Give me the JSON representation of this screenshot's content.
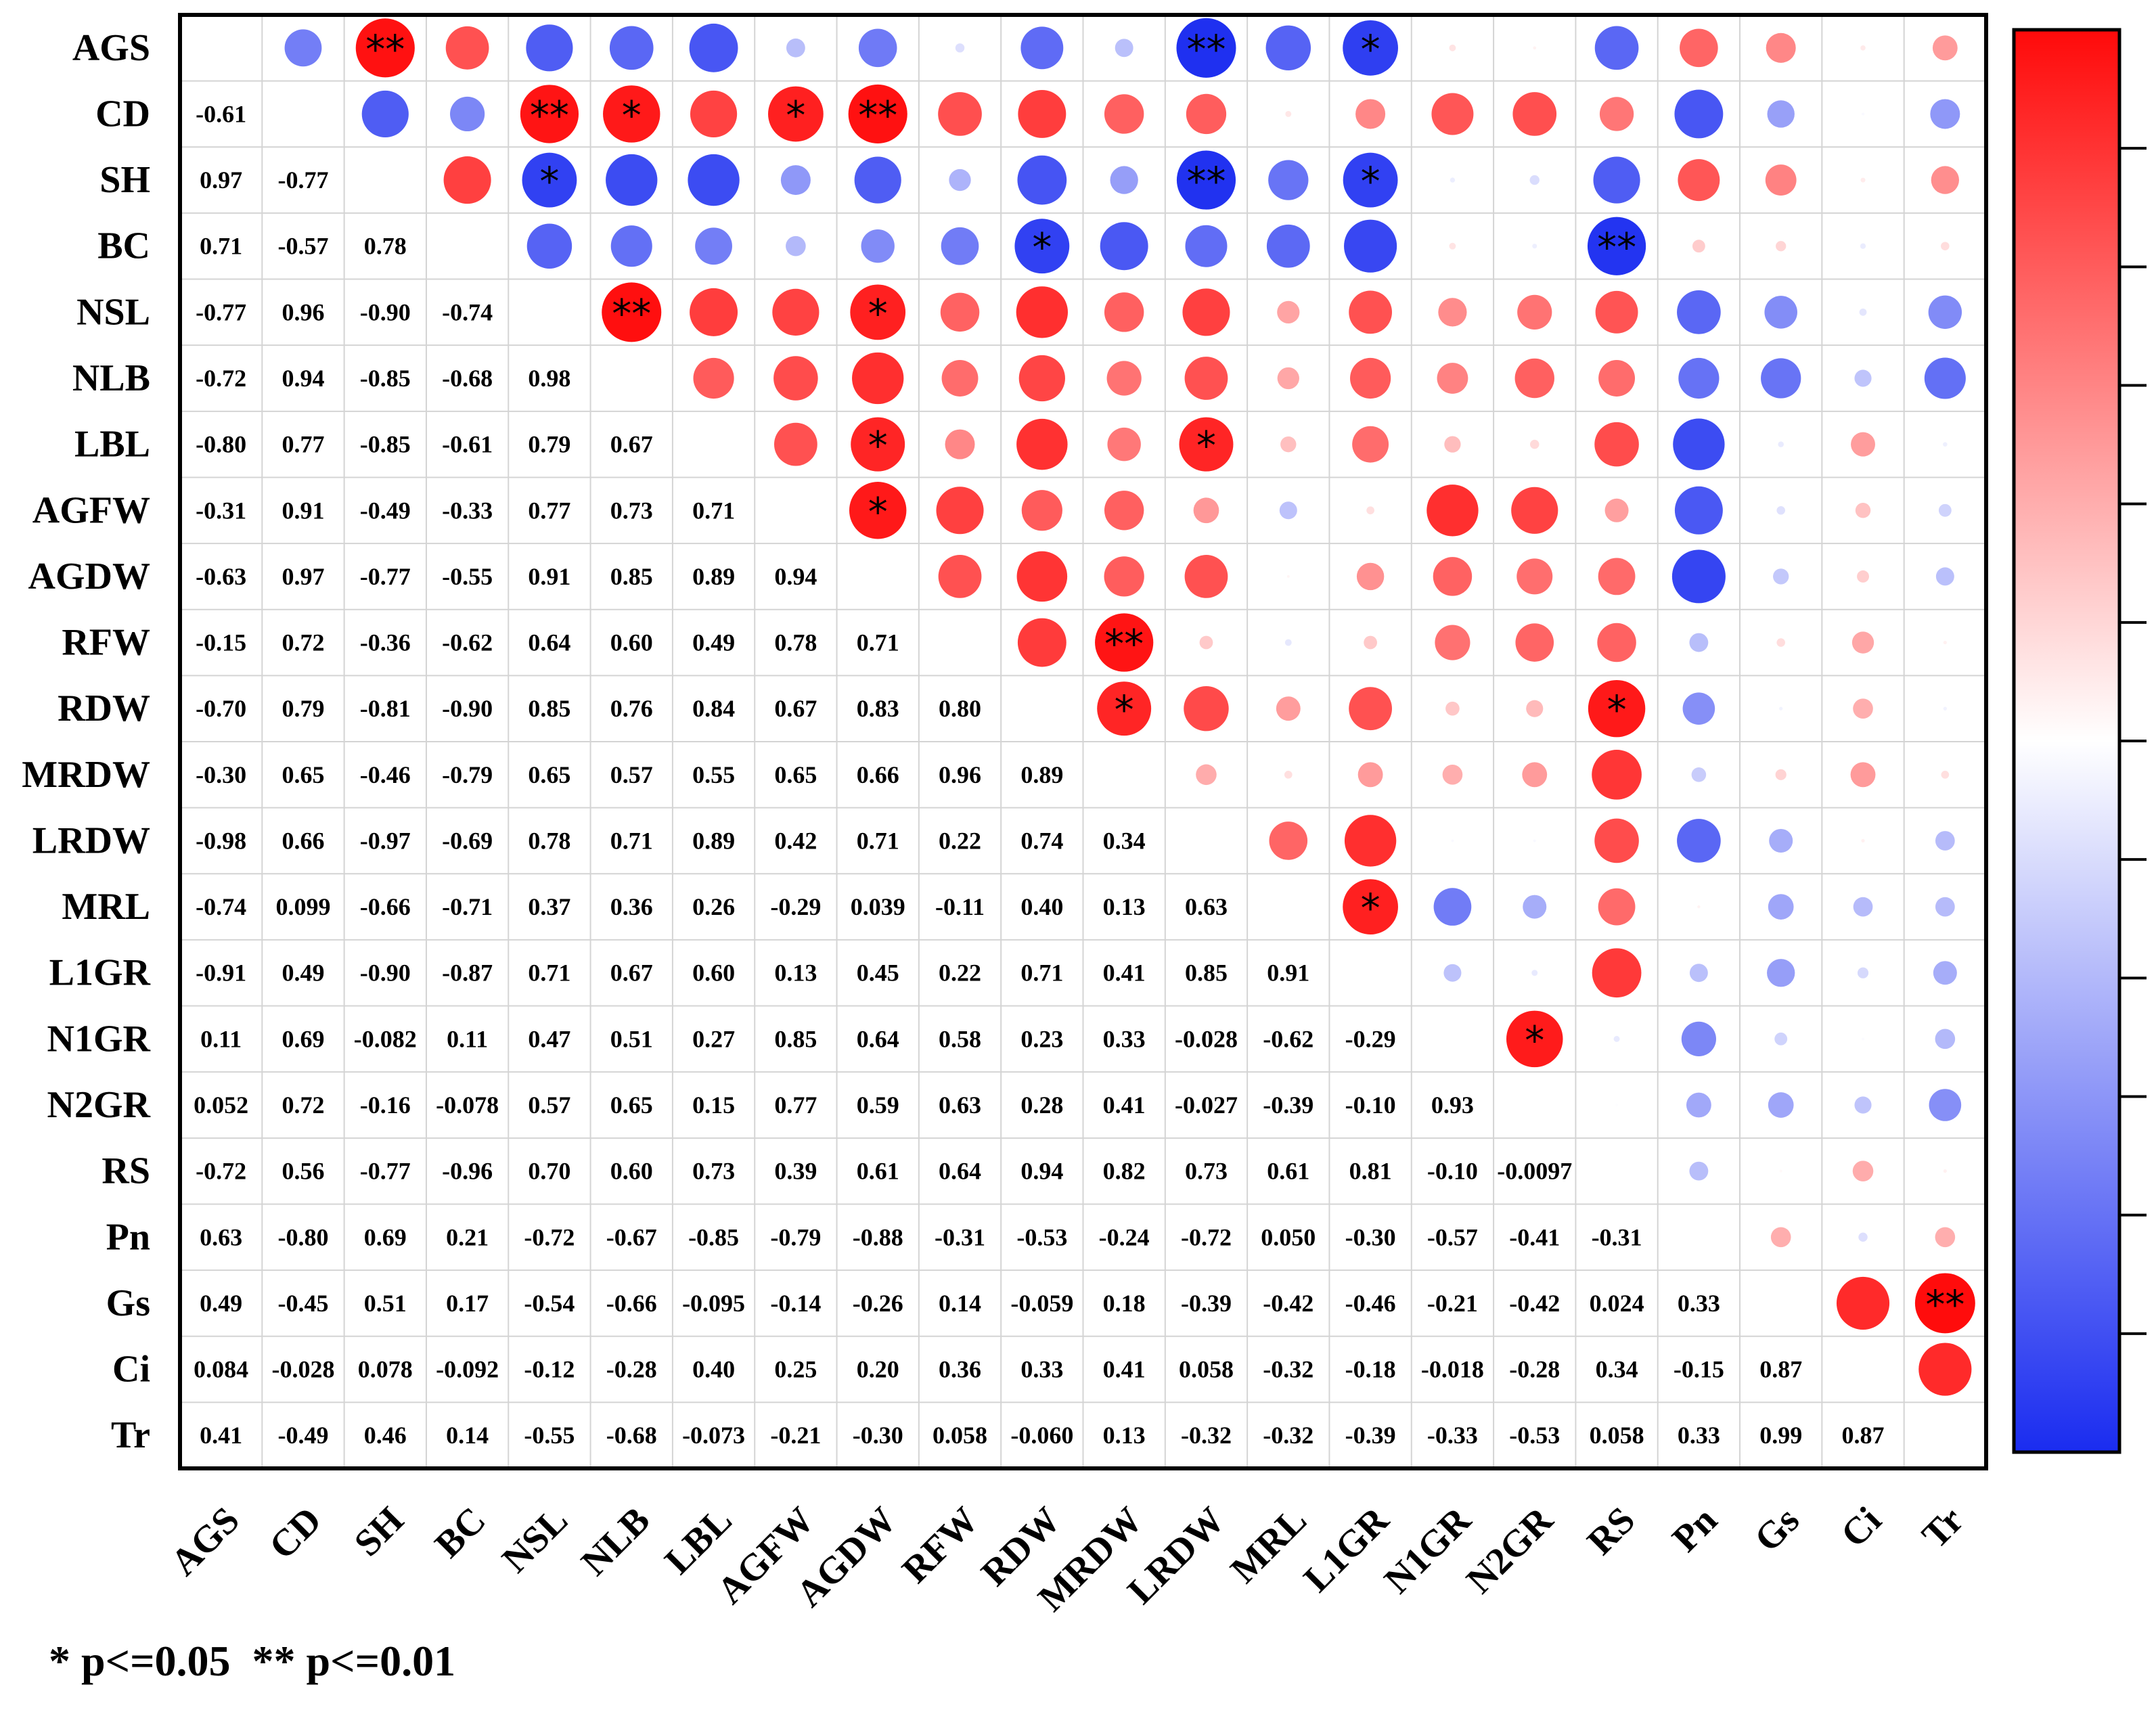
{
  "chart_data": {
    "type": "heatmap",
    "subtype": "correlation-matrix",
    "lower_triangle": "numbers",
    "upper_triangle": "circles",
    "variables": [
      "AGS",
      "CD",
      "SH",
      "BC",
      "NSL",
      "NLB",
      "LBL",
      "AGFW",
      "AGDW",
      "RFW",
      "RDW",
      "MRDW",
      "LRDW",
      "MRL",
      "L1GR",
      "N1GR",
      "N2GR",
      "RS",
      "Pn",
      "Gs",
      "Ci",
      "Tr"
    ],
    "lower_labels": [
      [],
      [
        "-0.61"
      ],
      [
        "0.97",
        "-0.77"
      ],
      [
        "0.71",
        "-0.57",
        "0.78"
      ],
      [
        "-0.77",
        "0.96",
        "-0.90",
        "-0.74"
      ],
      [
        "-0.72",
        "0.94",
        "-0.85",
        "-0.68",
        "0.98"
      ],
      [
        "-0.80",
        "0.77",
        "-0.85",
        "-0.61",
        "0.79",
        "0.67"
      ],
      [
        "-0.31",
        "0.91",
        "-0.49",
        "-0.33",
        "0.77",
        "0.73",
        "0.71"
      ],
      [
        "-0.63",
        "0.97",
        "-0.77",
        "-0.55",
        "0.91",
        "0.85",
        "0.89",
        "0.94"
      ],
      [
        "-0.15",
        "0.72",
        "-0.36",
        "-0.62",
        "0.64",
        "0.60",
        "0.49",
        "0.78",
        "0.71"
      ],
      [
        "-0.70",
        "0.79",
        "-0.81",
        "-0.90",
        "0.85",
        "0.76",
        "0.84",
        "0.67",
        "0.83",
        "0.80"
      ],
      [
        "-0.30",
        "0.65",
        "-0.46",
        "-0.79",
        "0.65",
        "0.57",
        "0.55",
        "0.65",
        "0.66",
        "0.96",
        "0.89"
      ],
      [
        "-0.98",
        "0.66",
        "-0.97",
        "-0.69",
        "0.78",
        "0.71",
        "0.89",
        "0.42",
        "0.71",
        "0.22",
        "0.74",
        "0.34"
      ],
      [
        "-0.74",
        "0.099",
        "-0.66",
        "-0.71",
        "0.37",
        "0.36",
        "0.26",
        "-0.29",
        "0.039",
        "-0.11",
        "0.40",
        "0.13",
        "0.63"
      ],
      [
        "-0.91",
        "0.49",
        "-0.90",
        "-0.87",
        "0.71",
        "0.67",
        "0.60",
        "0.13",
        "0.45",
        "0.22",
        "0.71",
        "0.41",
        "0.85",
        "0.91"
      ],
      [
        "0.11",
        "0.69",
        "-0.082",
        "0.11",
        "0.47",
        "0.51",
        "0.27",
        "0.85",
        "0.64",
        "0.58",
        "0.23",
        "0.33",
        "-0.028",
        "-0.62",
        "-0.29"
      ],
      [
        "0.052",
        "0.72",
        "-0.16",
        "-0.078",
        "0.57",
        "0.65",
        "0.15",
        "0.77",
        "0.59",
        "0.63",
        "0.28",
        "0.41",
        "-0.027",
        "-0.39",
        "-0.10",
        "0.93"
      ],
      [
        "-0.72",
        "0.56",
        "-0.77",
        "-0.96",
        "0.70",
        "0.60",
        "0.73",
        "0.39",
        "0.61",
        "0.64",
        "0.94",
        "0.82",
        "0.73",
        "0.61",
        "0.81",
        "-0.10",
        "-0.0097"
      ],
      [
        "0.63",
        "-0.80",
        "0.69",
        "0.21",
        "-0.72",
        "-0.67",
        "-0.85",
        "-0.79",
        "-0.88",
        "-0.31",
        "-0.53",
        "-0.24",
        "-0.72",
        "0.050",
        "-0.30",
        "-0.57",
        "-0.41",
        "-0.31"
      ],
      [
        "0.49",
        "-0.45",
        "0.51",
        "0.17",
        "-0.54",
        "-0.66",
        "-0.095",
        "-0.14",
        "-0.26",
        "0.14",
        "-0.059",
        "0.18",
        "-0.39",
        "-0.42",
        "-0.46",
        "-0.21",
        "-0.42",
        "0.024",
        "0.33"
      ],
      [
        "0.084",
        "-0.028",
        "0.078",
        "-0.092",
        "-0.12",
        "-0.28",
        "0.40",
        "0.25",
        "0.20",
        "0.36",
        "0.33",
        "0.41",
        "0.058",
        "-0.32",
        "-0.18",
        "-0.018",
        "-0.28",
        "0.34",
        "-0.15",
        "0.87"
      ],
      [
        "0.41",
        "-0.49",
        "0.46",
        "0.14",
        "-0.55",
        "-0.68",
        "-0.073",
        "-0.21",
        "-0.30",
        "0.058",
        "-0.060",
        "0.13",
        "-0.32",
        "-0.32",
        "-0.39",
        "-0.33",
        "-0.53",
        "0.058",
        "0.33",
        "0.99",
        "0.87"
      ]
    ],
    "significance": [
      {
        "row": "AGS",
        "col": "SH",
        "level": "**"
      },
      {
        "row": "AGS",
        "col": "LRDW",
        "level": "**"
      },
      {
        "row": "AGS",
        "col": "L1GR",
        "level": "*"
      },
      {
        "row": "CD",
        "col": "NSL",
        "level": "**"
      },
      {
        "row": "CD",
        "col": "NLB",
        "level": "*"
      },
      {
        "row": "CD",
        "col": "AGFW",
        "level": "*"
      },
      {
        "row": "CD",
        "col": "AGDW",
        "level": "**"
      },
      {
        "row": "SH",
        "col": "NSL",
        "level": "*"
      },
      {
        "row": "SH",
        "col": "LRDW",
        "level": "**"
      },
      {
        "row": "SH",
        "col": "L1GR",
        "level": "*"
      },
      {
        "row": "BC",
        "col": "RDW",
        "level": "*"
      },
      {
        "row": "BC",
        "col": "RS",
        "level": "**"
      },
      {
        "row": "NSL",
        "col": "NLB",
        "level": "**"
      },
      {
        "row": "NSL",
        "col": "AGDW",
        "level": "*"
      },
      {
        "row": "LBL",
        "col": "AGDW",
        "level": "*"
      },
      {
        "row": "LBL",
        "col": "LRDW",
        "level": "*"
      },
      {
        "row": "AGFW",
        "col": "AGDW",
        "level": "*"
      },
      {
        "row": "RFW",
        "col": "MRDW",
        "level": "**"
      },
      {
        "row": "RDW",
        "col": "MRDW",
        "level": "*"
      },
      {
        "row": "RDW",
        "col": "RS",
        "level": "*"
      },
      {
        "row": "MRL",
        "col": "L1GR",
        "level": "*"
      },
      {
        "row": "N1GR",
        "col": "N2GR",
        "level": "*"
      },
      {
        "row": "Gs",
        "col": "Tr",
        "level": "**"
      }
    ],
    "color_scale": {
      "min": -1,
      "max": 1,
      "negative": "#1a2cf0",
      "neutral": "#ffffff",
      "positive": "#ff0a0a",
      "ticks": 11
    },
    "legend_note": "* p<=0.05  ** p<=0.01"
  }
}
